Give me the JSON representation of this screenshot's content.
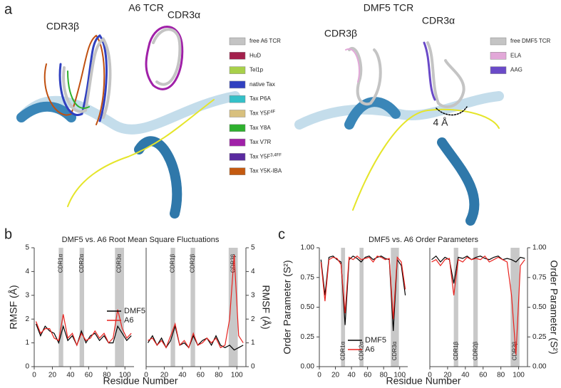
{
  "panel_a": {
    "label": "a",
    "left_title": "A6 TCR",
    "right_title": "DMF5 TCR",
    "left_cdr3b": "CDR3β",
    "left_cdr3a": "CDR3α",
    "right_cdr3b": "CDR3β",
    "right_cdr3a": "CDR3α",
    "shift_label": "4 Å",
    "legend_a6": [
      {
        "text": "free A6 TCR",
        "color": "#c4c4c4"
      },
      {
        "text": "HuD",
        "color": "#a3204c"
      },
      {
        "text": "Tel1p",
        "color": "#a8d04a"
      },
      {
        "text": "native Tax",
        "color": "#3040c0"
      },
      {
        "text": "Tax P6A",
        "color": "#34c0c8"
      },
      {
        "text": "Tax Y5F",
        "sup": "4F",
        "color": "#d8c07e"
      },
      {
        "text": "Tax Y8A",
        "color": "#2eb02e"
      },
      {
        "text": "Tax V7R",
        "color": "#a020a8"
      },
      {
        "text": "Tax Y5F",
        "sup": "3,4FF",
        "color": "#5a2aa0"
      },
      {
        "text": "Tax Y5K-IBA",
        "color": "#c45a10"
      }
    ],
    "legend_dmf5": [
      {
        "text": "free DMF5 TCR",
        "color": "#c4c4c4"
      },
      {
        "text": "ELA",
        "color": "#e2a8d8"
      },
      {
        "text": "AAG",
        "color": "#6a4ac8"
      }
    ]
  },
  "panel_b": {
    "label": "b",
    "title": "DMF5 vs. A6 Root Mean Square Fluctuations",
    "x_label": "Residue Number"
  },
  "panel_c": {
    "label": "c",
    "title": "DMF5 vs. A6 Order Parameters",
    "x_label": "Residue Number"
  },
  "chart_data": [
    {
      "type": "line",
      "y_label": "RMSF (Å)",
      "xlim": [
        0,
        110
      ],
      "xticks": [
        0,
        20,
        40,
        60,
        80,
        100
      ],
      "ylim": [
        0,
        5
      ],
      "yticks": [
        0,
        1,
        2,
        3,
        4,
        5
      ],
      "bands": [
        {
          "label": "CDR1α",
          "x": [
            27,
            32
          ]
        },
        {
          "label": "CDR2α",
          "x": [
            50,
            55
          ]
        },
        {
          "label": "CDR3α",
          "x": [
            89,
            99
          ]
        }
      ],
      "x": [
        2,
        7,
        12,
        17,
        22,
        27,
        32,
        37,
        42,
        47,
        52,
        57,
        62,
        67,
        72,
        77,
        82,
        87,
        92,
        97,
        102,
        107
      ],
      "series": [
        {
          "name": "DMF5",
          "color": "#000000",
          "values": [
            1.8,
            1.3,
            1.7,
            1.5,
            1.4,
            1.0,
            1.7,
            1.1,
            1.3,
            0.9,
            1.5,
            1.0,
            1.3,
            1.4,
            1.1,
            1.3,
            1.0,
            1.0,
            1.7,
            1.4,
            1.1,
            1.3
          ]
        },
        {
          "name": "A6",
          "color": "#e8221e",
          "values": [
            1.9,
            1.4,
            1.6,
            1.6,
            1.2,
            1.1,
            2.2,
            1.2,
            1.4,
            0.9,
            1.4,
            1.1,
            1.2,
            1.5,
            1.2,
            1.4,
            1.0,
            1.2,
            2.4,
            1.6,
            1.2,
            1.4
          ]
        }
      ]
    },
    {
      "type": "line",
      "y_label": "RMSF (Å)",
      "xlim": [
        0,
        110
      ],
      "xticks": [
        0,
        20,
        40,
        60,
        80,
        100
      ],
      "ylim": [
        0,
        5
      ],
      "yticks": [
        0,
        1,
        2,
        3,
        4,
        5
      ],
      "bands": [
        {
          "label": "CDR1β",
          "x": [
            27,
            32
          ]
        },
        {
          "label": "CDR2β",
          "x": [
            49,
            54
          ]
        },
        {
          "label": "CDR3β",
          "x": [
            91,
            101
          ]
        }
      ],
      "x": [
        2,
        7,
        12,
        17,
        22,
        27,
        32,
        37,
        42,
        47,
        52,
        57,
        62,
        67,
        72,
        77,
        82,
        87,
        92,
        97,
        102,
        107
      ],
      "series": [
        {
          "color": "#000000",
          "values": [
            1.0,
            1.3,
            0.9,
            1.2,
            0.8,
            1.1,
            1.7,
            0.9,
            1.0,
            0.8,
            1.3,
            0.9,
            1.1,
            1.2,
            0.9,
            1.3,
            0.9,
            0.8,
            0.9,
            0.7,
            0.8,
            0.9
          ]
        },
        {
          "color": "#e8221e",
          "values": [
            1.1,
            1.2,
            0.9,
            1.1,
            0.8,
            1.3,
            1.8,
            0.9,
            1.1,
            0.8,
            1.4,
            0.9,
            1.0,
            1.2,
            1.0,
            1.2,
            0.8,
            0.9,
            2.0,
            4.7,
            1.3,
            1.0
          ]
        }
      ]
    },
    {
      "type": "line",
      "y_label": "Order Parameter (S²)",
      "xlim": [
        0,
        110
      ],
      "xticks": [
        0,
        20,
        40,
        60,
        80,
        100
      ],
      "ylim": [
        0,
        1
      ],
      "yticks": [
        {
          "value": 0,
          "label": "0.00"
        },
        {
          "value": 0.25,
          "label": "0.25"
        },
        {
          "value": 0.5,
          "label": "0.50"
        },
        {
          "value": 0.75,
          "label": "0.75"
        },
        {
          "value": 1,
          "label": "1.00"
        }
      ],
      "bands": [
        {
          "label": "CDR1α",
          "x": [
            27,
            32
          ]
        },
        {
          "label": "CDR2α",
          "x": [
            50,
            55
          ]
        },
        {
          "label": "CDR3α",
          "x": [
            89,
            99
          ]
        }
      ],
      "x": [
        2,
        7,
        12,
        17,
        22,
        27,
        32,
        37,
        42,
        47,
        52,
        57,
        62,
        67,
        72,
        77,
        82,
        87,
        92,
        97,
        102,
        107
      ],
      "series": [
        {
          "name": "DMF5",
          "color": "#000000",
          "values": [
            0.9,
            0.6,
            0.92,
            0.93,
            0.9,
            0.88,
            0.35,
            0.9,
            0.93,
            0.91,
            0.88,
            0.92,
            0.93,
            0.9,
            0.92,
            0.93,
            0.91,
            0.9,
            0.3,
            0.9,
            0.85,
            0.6
          ]
        },
        {
          "name": "A6",
          "color": "#e8221e",
          "values": [
            0.88,
            0.55,
            0.9,
            0.92,
            0.91,
            0.86,
            0.45,
            0.92,
            0.9,
            0.93,
            0.9,
            0.91,
            0.92,
            0.88,
            0.93,
            0.92,
            0.9,
            0.91,
            0.4,
            0.92,
            0.88,
            0.65
          ]
        }
      ]
    },
    {
      "type": "line",
      "y_label": "Order Parameter (S²)",
      "xlim": [
        0,
        110
      ],
      "xticks": [
        0,
        20,
        40,
        60,
        80,
        100
      ],
      "ylim": [
        0,
        1
      ],
      "yticks": [
        {
          "value": 0,
          "label": "0.00"
        },
        {
          "value": 0.25,
          "label": "0.25"
        },
        {
          "value": 0.5,
          "label": "0.50"
        },
        {
          "value": 0.75,
          "label": "0.75"
        },
        {
          "value": 1,
          "label": "1.00"
        }
      ],
      "bands": [
        {
          "label": "CDR1β",
          "x": [
            27,
            32
          ]
        },
        {
          "label": "CDR2β",
          "x": [
            49,
            54
          ]
        },
        {
          "label": "CDR3β",
          "x": [
            91,
            101
          ]
        }
      ],
      "x": [
        2,
        7,
        12,
        17,
        22,
        27,
        32,
        37,
        42,
        47,
        52,
        57,
        62,
        67,
        72,
        77,
        82,
        87,
        92,
        97,
        102,
        107
      ],
      "series": [
        {
          "color": "#000000",
          "values": [
            0.9,
            0.93,
            0.88,
            0.92,
            0.9,
            0.7,
            0.92,
            0.91,
            0.93,
            0.9,
            0.92,
            0.93,
            0.91,
            0.9,
            0.92,
            0.93,
            0.9,
            0.91,
            0.9,
            0.88,
            0.92,
            0.91
          ]
        },
        {
          "color": "#e8221e",
          "values": [
            0.88,
            0.9,
            0.85,
            0.9,
            0.91,
            0.6,
            0.9,
            0.88,
            0.92,
            0.9,
            0.91,
            0.9,
            0.93,
            0.88,
            0.9,
            0.92,
            0.9,
            0.88,
            0.6,
            0.1,
            0.85,
            0.9
          ]
        }
      ]
    }
  ]
}
